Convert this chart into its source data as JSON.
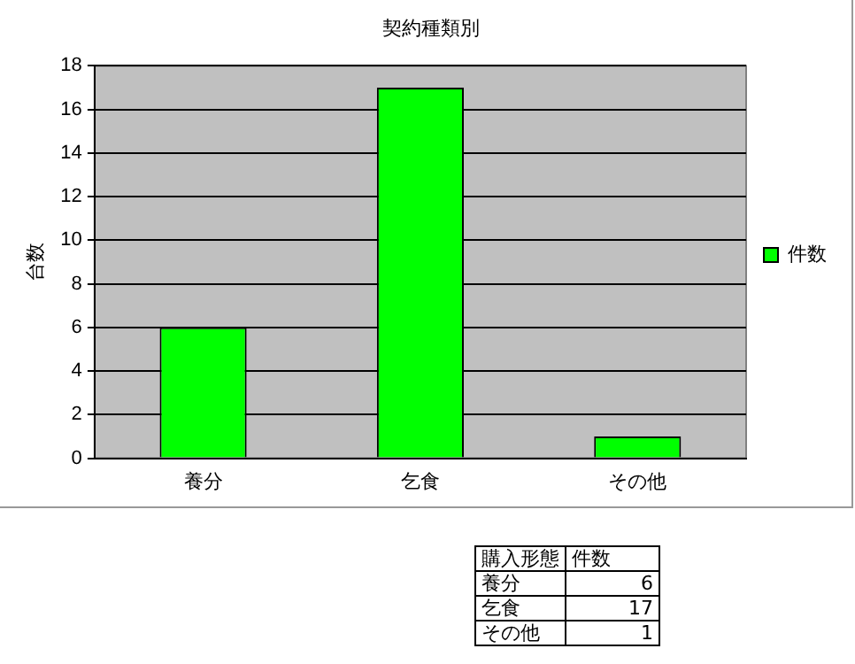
{
  "chart_data": {
    "type": "bar",
    "title": "契約種類別",
    "ylabel": "台数",
    "categories": [
      "養分",
      "乞食",
      "その他"
    ],
    "series": [
      {
        "name": "件数",
        "color": "#00ff00",
        "values": [
          6,
          17,
          1
        ]
      }
    ],
    "ylim": [
      0,
      18
    ],
    "yticks": [
      0,
      2,
      4,
      6,
      8,
      10,
      12,
      14,
      16,
      18
    ],
    "grid": "y",
    "legend": "right",
    "annotations": [
      "購入形態",
      "6",
      "17",
      "1"
    ]
  }
}
